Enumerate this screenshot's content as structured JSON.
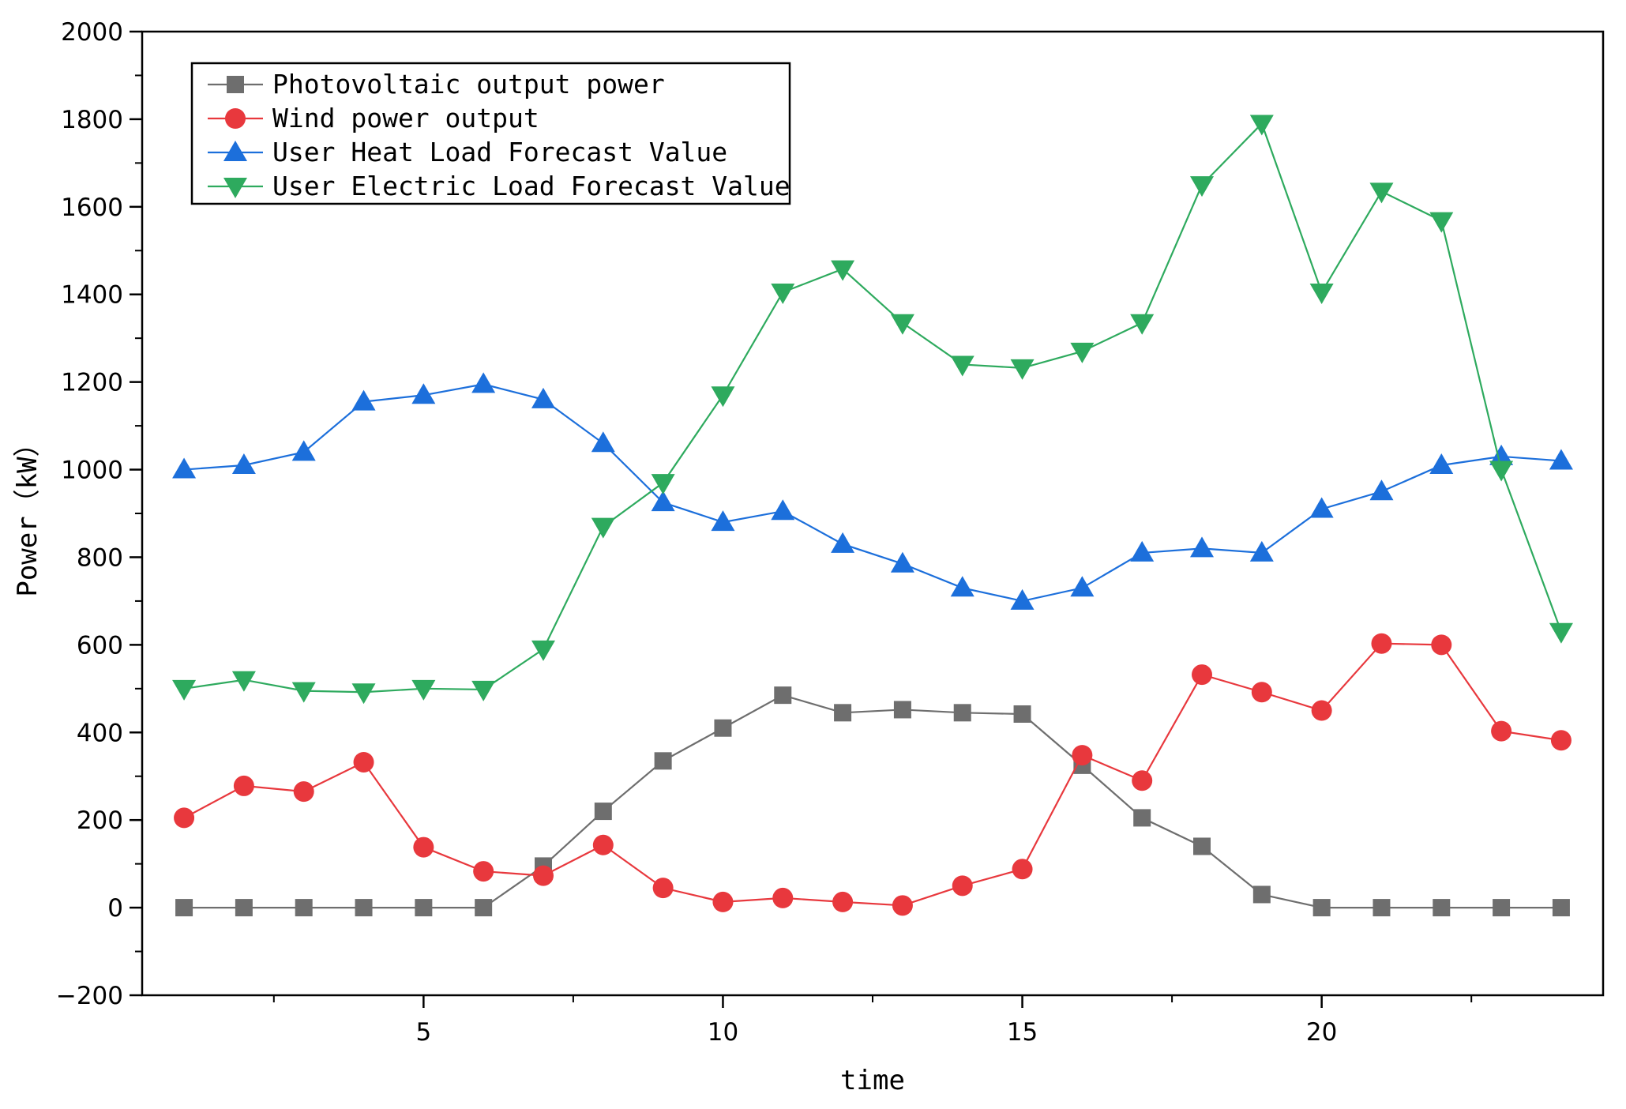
{
  "chart_data": {
    "type": "line",
    "title": "",
    "xlabel": "time",
    "ylabel": "Power（kW）",
    "xlim": [
      0.3,
      24.7
    ],
    "ylim": [
      -200,
      2000
    ],
    "xticks": [
      5,
      10,
      15,
      20
    ],
    "xtick_labels": [
      "5",
      "10",
      "15",
      "20"
    ],
    "yticks": [
      -200,
      0,
      200,
      400,
      600,
      800,
      1000,
      1200,
      1400,
      1600,
      1800,
      2000
    ],
    "ytick_labels": [
      "−200",
      "0",
      "200",
      "400",
      "600",
      "800",
      "1000",
      "1200",
      "1400",
      "1600",
      "1800",
      "2000"
    ],
    "grid": false,
    "legend_position": "top-left",
    "x": [
      1,
      2,
      3,
      4,
      5,
      6,
      7,
      8,
      9,
      10,
      11,
      12,
      13,
      14,
      15,
      16,
      17,
      18,
      19,
      20,
      21,
      22,
      23,
      24
    ],
    "series": [
      {
        "name": "Photovoltaic output power",
        "marker": "square",
        "color": "#6e6e6e",
        "values": [
          0,
          0,
          0,
          0,
          0,
          0,
          95,
          220,
          335,
          410,
          485,
          445,
          452,
          445,
          442,
          325,
          205,
          140,
          30,
          0,
          0,
          0,
          0,
          0
        ]
      },
      {
        "name": "Wind power output",
        "marker": "circle",
        "color": "#e8383d",
        "values": [
          205,
          278,
          265,
          332,
          138,
          83,
          73,
          143,
          45,
          13,
          22,
          13,
          5,
          50,
          88,
          348,
          290,
          532,
          492,
          450,
          603,
          600,
          403,
          382
        ]
      },
      {
        "name": "User Heat Load Forecast Value",
        "marker": "triangle-up",
        "color": "#1c6fdb",
        "values": [
          1000,
          1010,
          1040,
          1155,
          1170,
          1195,
          1160,
          1060,
          925,
          880,
          905,
          830,
          785,
          730,
          700,
          730,
          810,
          820,
          810,
          910,
          950,
          1010,
          1030,
          1020
        ]
      },
      {
        "name": "User Electric Load Forecast Value",
        "marker": "triangle-down",
        "color": "#2eaa5e",
        "values": [
          500,
          520,
          495,
          492,
          500,
          498,
          590,
          870,
          970,
          1170,
          1405,
          1458,
          1335,
          1240,
          1232,
          1270,
          1335,
          1650,
          1790,
          1405,
          1635,
          1568,
          1000,
          630
        ]
      }
    ]
  }
}
